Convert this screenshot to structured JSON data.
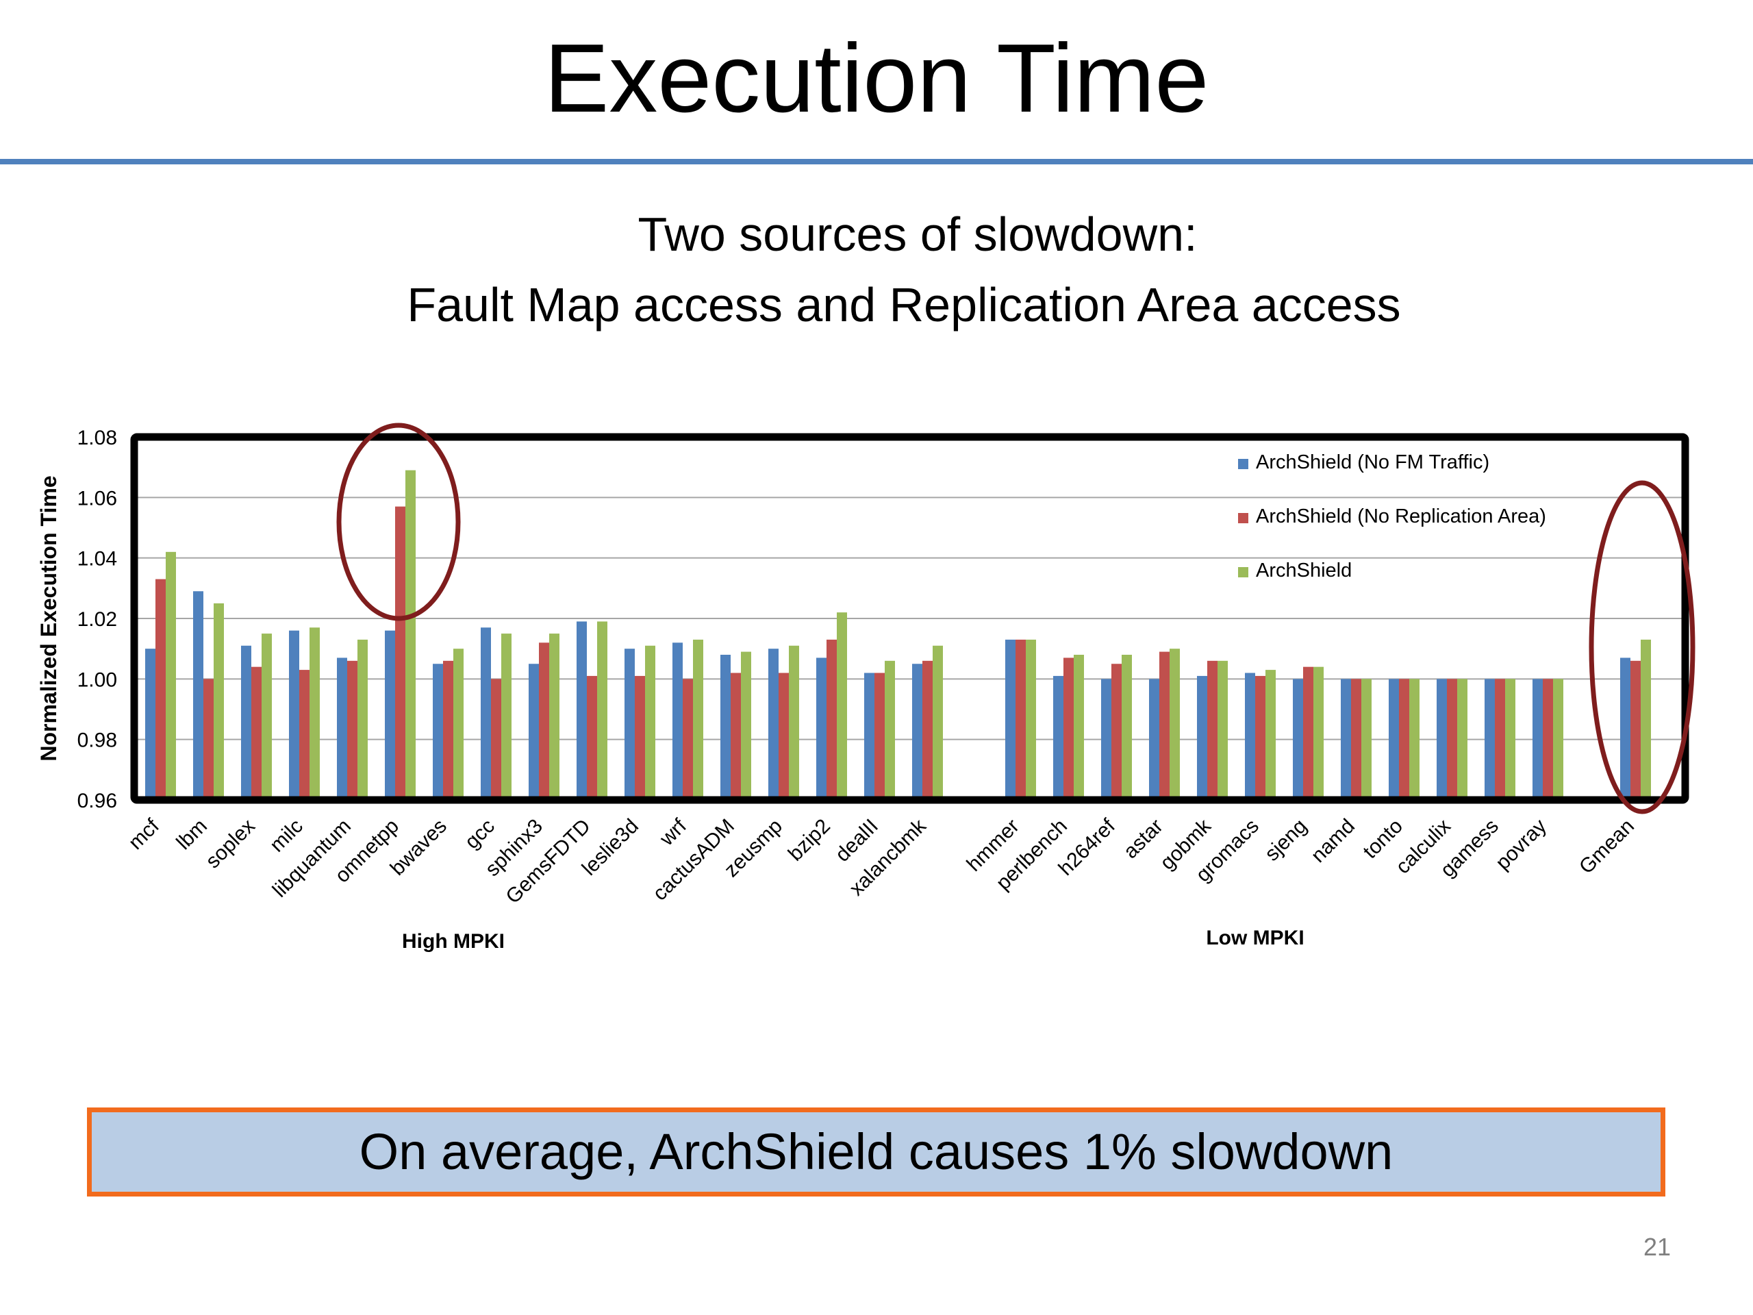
{
  "slide": {
    "title": "Execution Time",
    "subtitle_line1": "Two sources of slowdown:",
    "subtitle_line2": "Fault Map access and Replication Area access",
    "callout": "On average, ArchShield causes 1% slowdown",
    "page_number": "21"
  },
  "colors": {
    "accent_rule": "#4f81bd",
    "callout_fill": "#b9cde5",
    "callout_border": "#f26b1d",
    "highlight_ellipse": "#7f1d1d"
  },
  "chart_data": {
    "type": "bar",
    "ylabel": "Normalized Execution Time",
    "ylim": [
      0.96,
      1.08
    ],
    "yticks": [
      "0.96",
      "0.98",
      "1.00",
      "1.02",
      "1.04",
      "1.06",
      "1.08"
    ],
    "grid": true,
    "legend_position": "top-right",
    "groups": [
      {
        "label": "High MPKI",
        "categories": [
          "mcf",
          "lbm",
          "soplex",
          "milc",
          "libquantum",
          "omnetpp",
          "bwaves",
          "gcc",
          "sphinx3",
          "GemsFDTD",
          "leslie3d",
          "wrf",
          "cactusADM",
          "zeusmp",
          "bzip2",
          "dealII",
          "xalancbmk"
        ]
      },
      {
        "label": "Low MPKI",
        "categories": [
          "hmmer",
          "perlbench",
          "h264ref",
          "astar",
          "gobmk",
          "gromacs",
          "sjeng",
          "namd",
          "tonto",
          "calculix",
          "gamess",
          "povray"
        ]
      },
      {
        "label": "",
        "categories": [
          "Gmean"
        ]
      }
    ],
    "categories": [
      "mcf",
      "lbm",
      "soplex",
      "milc",
      "libquantum",
      "omnetpp",
      "bwaves",
      "gcc",
      "sphinx3",
      "GemsFDTD",
      "leslie3d",
      "wrf",
      "cactusADM",
      "zeusmp",
      "bzip2",
      "dealII",
      "xalancbmk",
      "hmmer",
      "perlbench",
      "h264ref",
      "astar",
      "gobmk",
      "gromacs",
      "sjeng",
      "namd",
      "tonto",
      "calculix",
      "gamess",
      "povray",
      "Gmean"
    ],
    "series": [
      {
        "name": "ArchShield (No FM Traffic)",
        "color": "#4f81bd",
        "values": [
          1.01,
          1.029,
          1.011,
          1.016,
          1.007,
          1.016,
          1.005,
          1.017,
          1.005,
          1.019,
          1.01,
          1.012,
          1.008,
          1.01,
          1.007,
          1.002,
          1.005,
          1.013,
          1.001,
          1.0,
          1.0,
          1.001,
          1.002,
          1.0,
          1.0,
          1.0,
          1.0,
          1.0,
          1.0,
          1.007
        ]
      },
      {
        "name": "ArchShield (No Replication Area)",
        "color": "#c0504d",
        "values": [
          1.033,
          1.0,
          1.004,
          1.003,
          1.006,
          1.057,
          1.006,
          1.0,
          1.012,
          1.001,
          1.001,
          1.0,
          1.002,
          1.002,
          1.013,
          1.002,
          1.006,
          1.013,
          1.007,
          1.005,
          1.009,
          1.006,
          1.001,
          1.004,
          1.0,
          1.0,
          1.0,
          1.0,
          1.0,
          1.006
        ]
      },
      {
        "name": "ArchShield",
        "color": "#9bbb59",
        "values": [
          1.042,
          1.025,
          1.015,
          1.017,
          1.013,
          1.069,
          1.01,
          1.015,
          1.015,
          1.019,
          1.011,
          1.013,
          1.009,
          1.011,
          1.022,
          1.006,
          1.011,
          1.013,
          1.008,
          1.008,
          1.01,
          1.006,
          1.003,
          1.004,
          1.0,
          1.0,
          1.0,
          1.0,
          1.0,
          1.013
        ]
      }
    ],
    "highlights": [
      "omnetpp",
      "Gmean"
    ]
  }
}
